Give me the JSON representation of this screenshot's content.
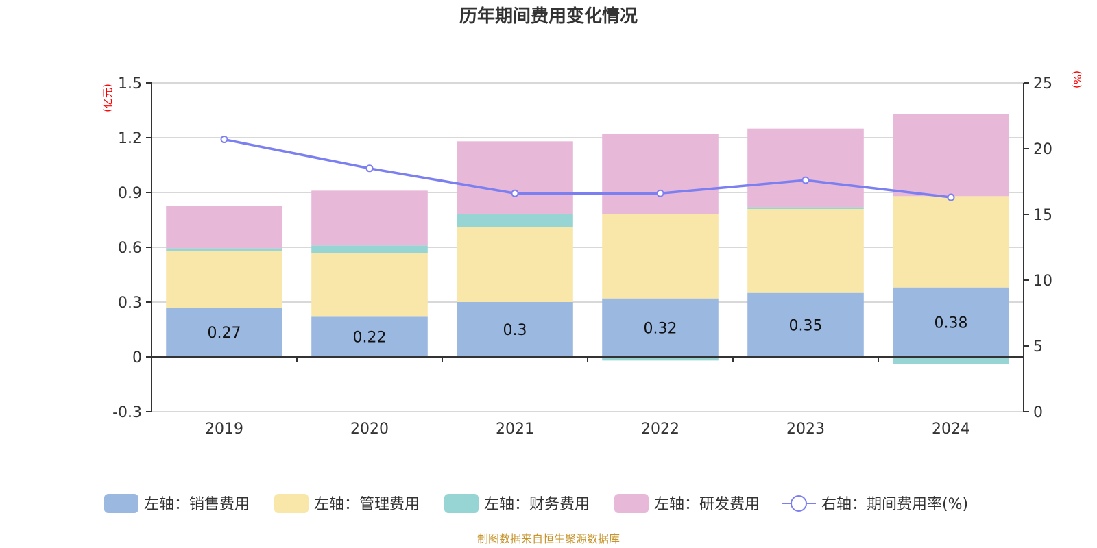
{
  "chart_data": {
    "type": "bar",
    "subtype": "stacked-bar-with-line",
    "title": "历年期间费用变化情况",
    "categories": [
      "2019",
      "2020",
      "2021",
      "2022",
      "2023",
      "2024"
    ],
    "left_axis": {
      "label": "(亿元)",
      "ylim": [
        -0.3,
        1.5
      ],
      "ticks": [
        "-0.3",
        "0",
        "0.3",
        "0.6",
        "0.9",
        "1.2",
        "1.5"
      ],
      "tick_values": [
        -0.3,
        0,
        0.3,
        0.6,
        0.9,
        1.2,
        1.5
      ]
    },
    "right_axis": {
      "label": "(%)",
      "ylim": [
        0,
        25
      ],
      "ticks": [
        "0",
        "5",
        "10",
        "15",
        "20",
        "25"
      ],
      "tick_values": [
        0,
        5,
        10,
        15,
        20,
        25
      ]
    },
    "grid": true,
    "series": [
      {
        "name": "左轴：销售费用",
        "type": "bar",
        "axis": "left",
        "color": "#9bb8e1",
        "values": [
          0.27,
          0.22,
          0.3,
          0.32,
          0.35,
          0.38
        ],
        "labels": [
          "0.27",
          "0.22",
          "0.3",
          "0.32",
          "0.35",
          "0.38"
        ]
      },
      {
        "name": "左轴：管理费用",
        "type": "bar",
        "axis": "left",
        "color": "#f8e7a9",
        "values": [
          0.31,
          0.35,
          0.41,
          0.46,
          0.46,
          0.5
        ]
      },
      {
        "name": "左轴：财务费用",
        "type": "bar",
        "axis": "left",
        "color": "#97d4d4",
        "values": [
          0.015,
          0.04,
          0.07,
          -0.02,
          0.01,
          -0.04
        ]
      },
      {
        "name": "左轴：研发费用",
        "type": "bar",
        "axis": "left",
        "color": "#e8b8d8",
        "values": [
          0.23,
          0.3,
          0.4,
          0.44,
          0.43,
          0.45
        ]
      },
      {
        "name": "右轴：期间费用率(%)",
        "type": "line",
        "axis": "right",
        "color": "#7b7ff0",
        "values": [
          20.7,
          18.5,
          16.6,
          16.6,
          17.6,
          16.3
        ]
      }
    ],
    "legend_position": "bottom"
  },
  "footer": "制图数据来自恒生聚源数据库"
}
